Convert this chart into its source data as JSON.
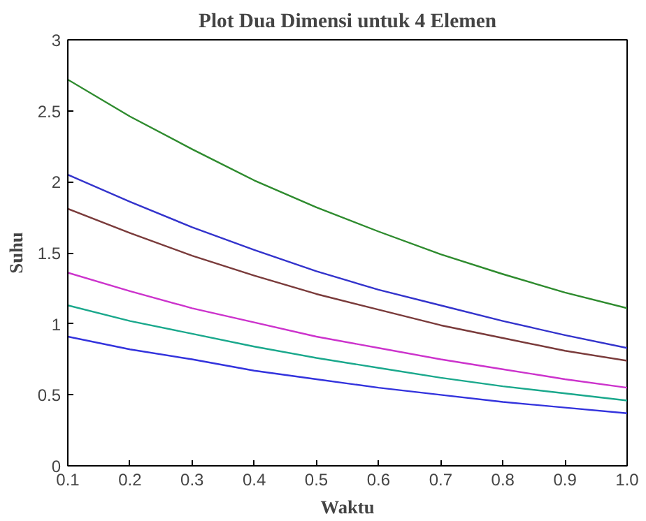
{
  "chart_data": {
    "type": "line",
    "title": "Plot Dua Dimensi untuk 4 Elemen",
    "xlabel": "Waktu",
    "ylabel": "Suhu",
    "x": [
      0.1,
      0.2,
      0.3,
      0.4,
      0.5,
      0.6,
      0.7,
      0.8,
      0.9,
      1.0
    ],
    "series": [
      {
        "color": "#2e8b2e",
        "values": [
          2.72,
          2.46,
          2.23,
          2.01,
          1.82,
          1.65,
          1.49,
          1.35,
          1.22,
          1.11
        ]
      },
      {
        "color": "#3333cc",
        "values": [
          2.05,
          1.86,
          1.68,
          1.52,
          1.37,
          1.24,
          1.13,
          1.02,
          0.92,
          0.83
        ]
      },
      {
        "color": "#7a3b3b",
        "values": [
          1.81,
          1.64,
          1.48,
          1.34,
          1.21,
          1.1,
          0.99,
          0.9,
          0.81,
          0.74
        ]
      },
      {
        "color": "#cc33cc",
        "values": [
          1.36,
          1.23,
          1.11,
          1.01,
          0.91,
          0.83,
          0.75,
          0.68,
          0.61,
          0.55
        ]
      },
      {
        "color": "#1aa88c",
        "values": [
          1.13,
          1.02,
          0.93,
          0.84,
          0.76,
          0.69,
          0.62,
          0.56,
          0.51,
          0.46
        ]
      },
      {
        "color": "#3333dd",
        "values": [
          0.91,
          0.82,
          0.75,
          0.67,
          0.61,
          0.55,
          0.5,
          0.45,
          0.41,
          0.37
        ]
      }
    ],
    "xlim": [
      0.1,
      1.0
    ],
    "ylim": [
      0,
      3
    ],
    "xticks": [
      0.1,
      0.2,
      0.3,
      0.4,
      0.5,
      0.6,
      0.7,
      0.8,
      0.9,
      {
        "value": 1.0,
        "label": "1.0"
      }
    ],
    "yticks": [
      0,
      0.5,
      1,
      1.5,
      2,
      2.5,
      3
    ],
    "grid": false
  }
}
